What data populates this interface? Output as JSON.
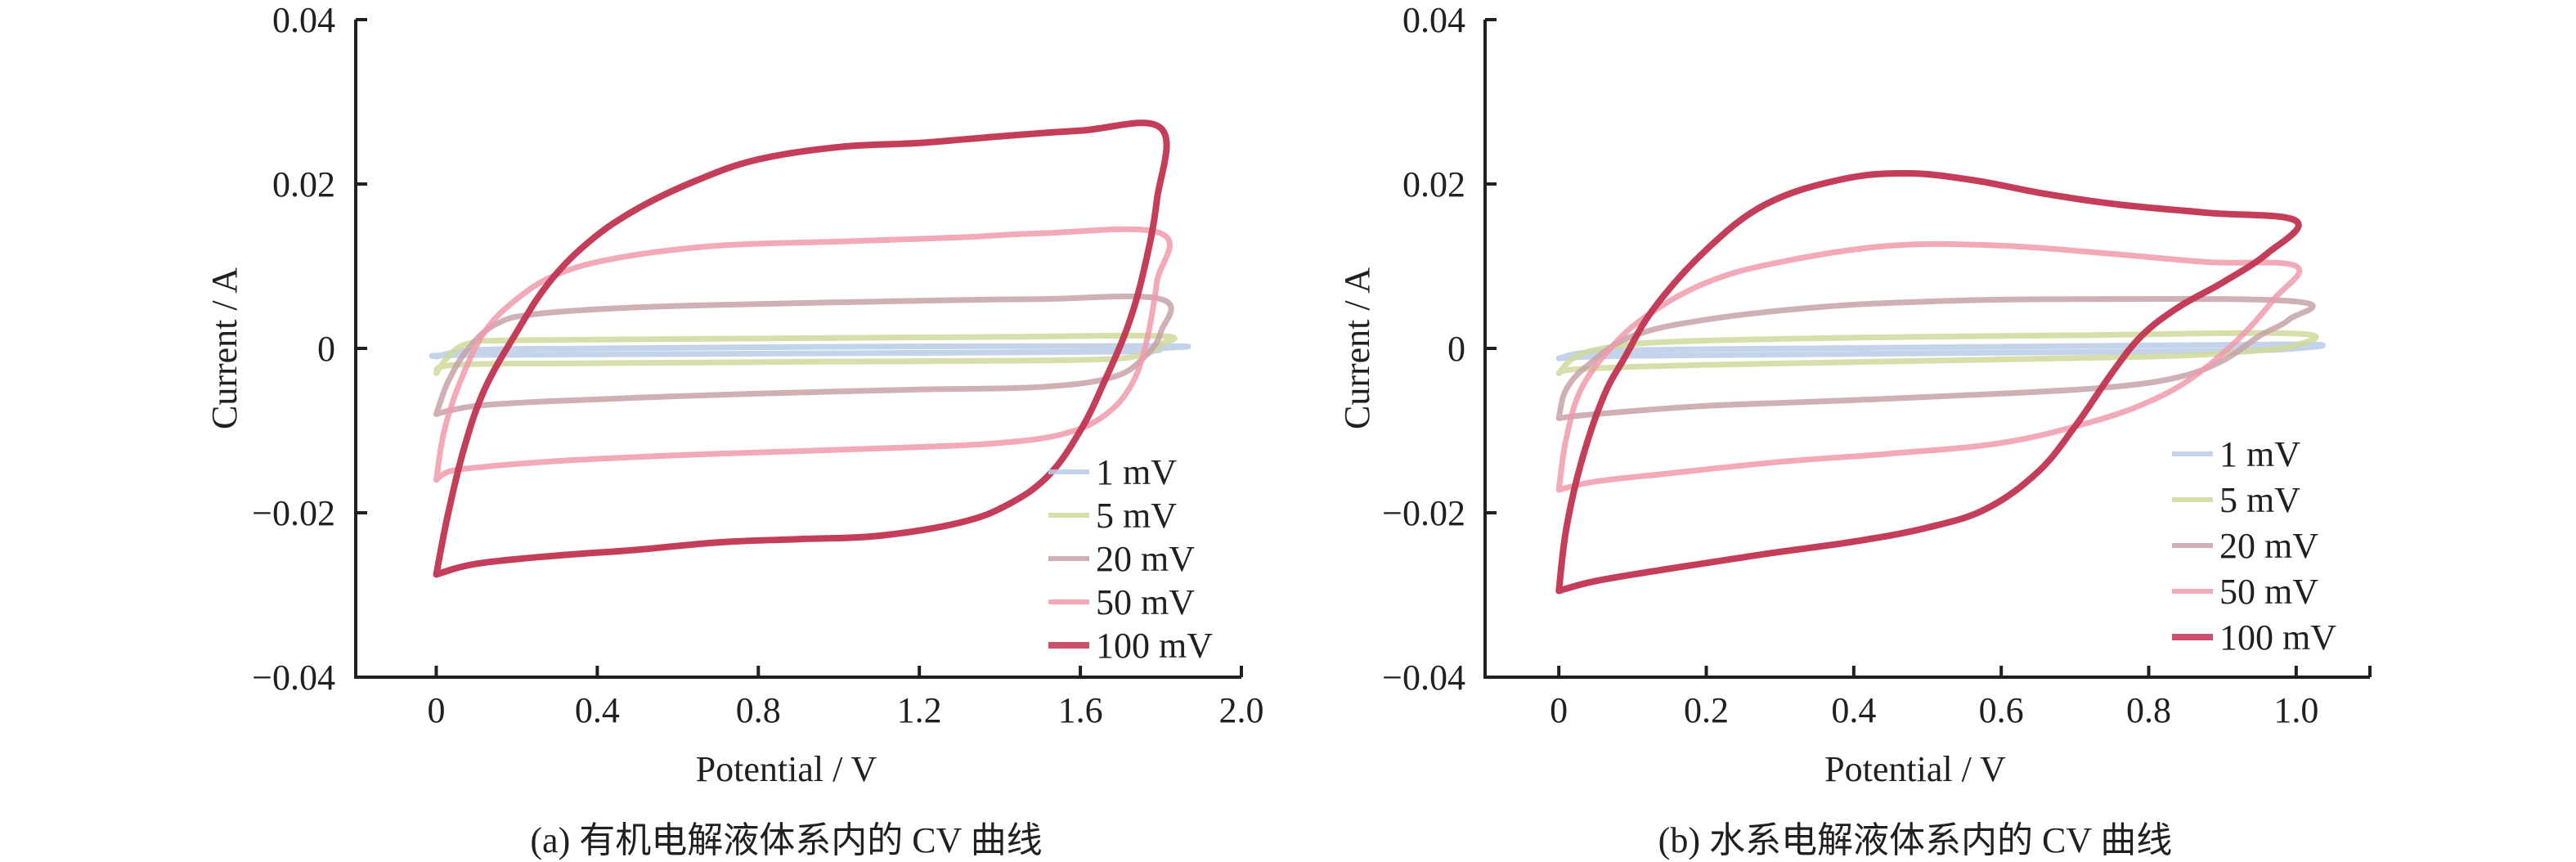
{
  "chart_data": [
    {
      "type": "line",
      "panel": "a",
      "title": "",
      "caption": "(a) 有机电解液体系内的 CV 曲线",
      "xlabel": "Potential / V",
      "ylabel": "Current / A",
      "xlim": [
        -0.2,
        2.0
      ],
      "ylim": [
        -0.04,
        0.04
      ],
      "xticks": [
        0,
        0.4,
        0.8,
        1.2,
        1.6,
        2.0
      ],
      "xtick_labels": [
        "0",
        "0.4",
        "0.8",
        "1.2",
        "1.6",
        "2.0"
      ],
      "yticks": [
        0.04,
        0.02,
        0,
        -0.02,
        -0.04
      ],
      "ytick_labels": [
        "0.04",
        "0.02",
        "0",
        "−0.02",
        "−0.04"
      ],
      "grid": false,
      "legend_position": "bottom-right",
      "series": [
        {
          "name": "1 mV",
          "color": "#b9cde6",
          "points": [
            [
              0,
              -0.001
            ],
            [
              0.1,
              -0.0002
            ],
            [
              0.4,
              0.0
            ],
            [
              1.0,
              0.0002
            ],
            [
              1.8,
              0.0003
            ],
            [
              1.8,
              0.0
            ],
            [
              1.7,
              -0.0004
            ],
            [
              1.0,
              -0.0006
            ],
            [
              0.1,
              -0.0008
            ],
            [
              0,
              -0.001
            ]
          ]
        },
        {
          "name": "5 mV",
          "color": "#cfd99b",
          "points": [
            [
              0,
              -0.003
            ],
            [
              0.03,
              -0.001
            ],
            [
              0.08,
              0.0006
            ],
            [
              0.2,
              0.001
            ],
            [
              0.8,
              0.0012
            ],
            [
              1.4,
              0.0014
            ],
            [
              1.8,
              0.0015
            ],
            [
              1.8,
              0.0005
            ],
            [
              1.75,
              -0.0008
            ],
            [
              1.6,
              -0.0014
            ],
            [
              1.0,
              -0.0016
            ],
            [
              0.4,
              -0.0018
            ],
            [
              0.05,
              -0.002
            ],
            [
              0,
              -0.003
            ]
          ]
        },
        {
          "name": "20 mV",
          "color": "#c6a2a8",
          "points": [
            [
              0,
              -0.008
            ],
            [
              0.03,
              -0.004
            ],
            [
              0.08,
              0.0
            ],
            [
              0.15,
              0.003
            ],
            [
              0.25,
              0.0042
            ],
            [
              0.5,
              0.005
            ],
            [
              0.8,
              0.0054
            ],
            [
              1.2,
              0.0058
            ],
            [
              1.5,
              0.006
            ],
            [
              1.8,
              0.006
            ],
            [
              1.8,
              0.002
            ],
            [
              1.76,
              -0.001
            ],
            [
              1.68,
              -0.0035
            ],
            [
              1.5,
              -0.0047
            ],
            [
              1.2,
              -0.005
            ],
            [
              0.8,
              -0.0055
            ],
            [
              0.5,
              -0.006
            ],
            [
              0.25,
              -0.0065
            ],
            [
              0.1,
              -0.007
            ],
            [
              0.03,
              -0.0076
            ],
            [
              0,
              -0.008
            ]
          ]
        },
        {
          "name": "50 mV",
          "color": "#f09aab",
          "points": [
            [
              0,
              -0.016
            ],
            [
              0.02,
              -0.01
            ],
            [
              0.06,
              -0.004
            ],
            [
              0.12,
              0.002
            ],
            [
              0.2,
              0.006
            ],
            [
              0.3,
              0.009
            ],
            [
              0.45,
              0.011
            ],
            [
              0.7,
              0.0125
            ],
            [
              1.0,
              0.013
            ],
            [
              1.3,
              0.0135
            ],
            [
              1.5,
              0.014
            ],
            [
              1.8,
              0.014
            ],
            [
              1.79,
              0.008
            ],
            [
              1.76,
              0.0
            ],
            [
              1.72,
              -0.005
            ],
            [
              1.65,
              -0.0085
            ],
            [
              1.55,
              -0.0105
            ],
            [
              1.4,
              -0.0115
            ],
            [
              1.2,
              -0.012
            ],
            [
              0.9,
              -0.0125
            ],
            [
              0.6,
              -0.013
            ],
            [
              0.3,
              -0.0137
            ],
            [
              0.1,
              -0.0145
            ],
            [
              0.03,
              -0.015
            ],
            [
              0,
              -0.016
            ]
          ]
        },
        {
          "name": "100 mV",
          "color": "#c23450",
          "points": [
            [
              0,
              -0.0275
            ],
            [
              0.03,
              -0.02
            ],
            [
              0.07,
              -0.012
            ],
            [
              0.12,
              -0.005
            ],
            [
              0.2,
              0.002
            ],
            [
              0.28,
              0.008
            ],
            [
              0.38,
              0.013
            ],
            [
              0.5,
              0.017
            ],
            [
              0.65,
              0.0205
            ],
            [
              0.8,
              0.023
            ],
            [
              1.0,
              0.0245
            ],
            [
              1.2,
              0.025
            ],
            [
              1.4,
              0.0258
            ],
            [
              1.6,
              0.0265
            ],
            [
              1.8,
              0.0268
            ],
            [
              1.79,
              0.018
            ],
            [
              1.76,
              0.01
            ],
            [
              1.72,
              0.003
            ],
            [
              1.66,
              -0.004
            ],
            [
              1.6,
              -0.01
            ],
            [
              1.52,
              -0.0155
            ],
            [
              1.42,
              -0.019
            ],
            [
              1.3,
              -0.0212
            ],
            [
              1.1,
              -0.0228
            ],
            [
              0.9,
              -0.0232
            ],
            [
              0.7,
              -0.0236
            ],
            [
              0.5,
              -0.0245
            ],
            [
              0.3,
              -0.0252
            ],
            [
              0.1,
              -0.0262
            ],
            [
              0,
              -0.0275
            ]
          ]
        }
      ]
    },
    {
      "type": "line",
      "panel": "b",
      "title": "",
      "caption": "(b) 水系电解液体系内的 CV 曲线",
      "xlabel": "Potential / V",
      "ylabel": "Current / A",
      "xlim": [
        -0.1,
        1.1
      ],
      "ylim": [
        -0.04,
        0.04
      ],
      "xticks": [
        0,
        0.2,
        0.4,
        0.6,
        0.8,
        1.0
      ],
      "xtick_labels": [
        "0",
        "0.2",
        "0.4",
        "0.6",
        "0.8",
        "1.0"
      ],
      "yticks": [
        0.04,
        0.02,
        0,
        -0.02,
        -0.04
      ],
      "ytick_labels": [
        "0.04",
        "0.02",
        "0",
        "−0.02",
        "−0.04"
      ],
      "grid": false,
      "legend_position": "bottom-right",
      "series": [
        {
          "name": "1 mV",
          "color": "#b9cde6",
          "points": [
            [
              0,
              -0.0012
            ],
            [
              0.05,
              -0.0004
            ],
            [
              0.2,
              -0.0001
            ],
            [
              0.6,
              0.0002
            ],
            [
              1.0,
              0.0005
            ],
            [
              1.0,
              0.0
            ],
            [
              0.9,
              -0.0003
            ],
            [
              0.5,
              -0.0006
            ],
            [
              0.1,
              -0.0009
            ],
            [
              0,
              -0.0012
            ]
          ]
        },
        {
          "name": "5 mV",
          "color": "#cfd99b",
          "points": [
            [
              0,
              -0.003
            ],
            [
              0.02,
              -0.0012
            ],
            [
              0.06,
              0.0
            ],
            [
              0.15,
              0.0008
            ],
            [
              0.4,
              0.0013
            ],
            [
              0.7,
              0.0016
            ],
            [
              1.0,
              0.0018
            ],
            [
              1.0,
              0.0004
            ],
            [
              0.93,
              -0.0004
            ],
            [
              0.8,
              -0.001
            ],
            [
              0.5,
              -0.0015
            ],
            [
              0.2,
              -0.002
            ],
            [
              0.03,
              -0.0025
            ],
            [
              0,
              -0.003
            ]
          ]
        },
        {
          "name": "20 mV",
          "color": "#c6a2a8",
          "points": [
            [
              0,
              -0.0085
            ],
            [
              0.01,
              -0.005
            ],
            [
              0.04,
              -0.002
            ],
            [
              0.1,
              0.0015
            ],
            [
              0.2,
              0.0035
            ],
            [
              0.35,
              0.005
            ],
            [
              0.5,
              0.0057
            ],
            [
              0.7,
              0.006
            ],
            [
              1.0,
              0.0057
            ],
            [
              0.99,
              0.0035
            ],
            [
              0.95,
              0.0015
            ],
            [
              0.9,
              -0.0015
            ],
            [
              0.84,
              -0.0035
            ],
            [
              0.75,
              -0.0047
            ],
            [
              0.6,
              -0.0055
            ],
            [
              0.4,
              -0.0063
            ],
            [
              0.2,
              -0.007
            ],
            [
              0.05,
              -0.008
            ],
            [
              0,
              -0.0085
            ]
          ]
        },
        {
          "name": "50 mV",
          "color": "#f09aab",
          "points": [
            [
              0,
              -0.0172
            ],
            [
              0.01,
              -0.011
            ],
            [
              0.03,
              -0.005
            ],
            [
              0.07,
              0.0
            ],
            [
              0.12,
              0.004
            ],
            [
              0.2,
              0.008
            ],
            [
              0.3,
              0.0105
            ],
            [
              0.45,
              0.0125
            ],
            [
              0.6,
              0.0125
            ],
            [
              0.75,
              0.0115
            ],
            [
              0.88,
              0.0105
            ],
            [
              1.0,
              0.01
            ],
            [
              0.97,
              0.006
            ],
            [
              0.92,
              0.001
            ],
            [
              0.86,
              -0.0035
            ],
            [
              0.8,
              -0.0065
            ],
            [
              0.72,
              -0.009
            ],
            [
              0.6,
              -0.0115
            ],
            [
              0.45,
              -0.0128
            ],
            [
              0.3,
              -0.0138
            ],
            [
              0.15,
              -0.0152
            ],
            [
              0.05,
              -0.0162
            ],
            [
              0,
              -0.0172
            ]
          ]
        },
        {
          "name": "100 mV",
          "color": "#c23450",
          "points": [
            [
              0,
              -0.0295
            ],
            [
              0.01,
              -0.022
            ],
            [
              0.03,
              -0.014
            ],
            [
              0.06,
              -0.006
            ],
            [
              0.09,
              -0.001
            ],
            [
              0.13,
              0.005
            ],
            [
              0.2,
              0.012
            ],
            [
              0.28,
              0.0175
            ],
            [
              0.38,
              0.0205
            ],
            [
              0.47,
              0.0213
            ],
            [
              0.56,
              0.0205
            ],
            [
              0.66,
              0.0188
            ],
            [
              0.76,
              0.0175
            ],
            [
              0.88,
              0.0165
            ],
            [
              1.0,
              0.0155
            ],
            [
              0.96,
              0.0115
            ],
            [
              0.9,
              0.008
            ],
            [
              0.84,
              0.005
            ],
            [
              0.79,
              0.0015
            ],
            [
              0.75,
              -0.003
            ],
            [
              0.7,
              -0.0095
            ],
            [
              0.65,
              -0.015
            ],
            [
              0.58,
              -0.0195
            ],
            [
              0.5,
              -0.0218
            ],
            [
              0.4,
              -0.0235
            ],
            [
              0.28,
              -0.025
            ],
            [
              0.15,
              -0.0268
            ],
            [
              0.05,
              -0.0283
            ],
            [
              0,
              -0.0295
            ]
          ]
        }
      ]
    }
  ]
}
